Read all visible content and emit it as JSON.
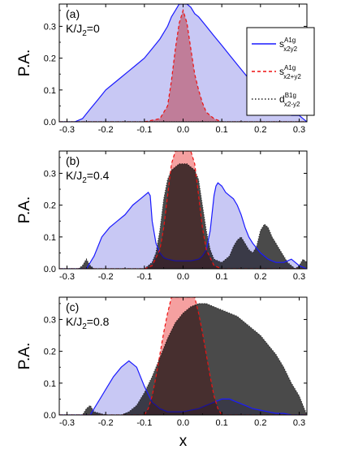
{
  "chart_data": [
    {
      "type": "area",
      "panel_label": "(a)",
      "param_label": {
        "main": "K/J",
        "sub": "2",
        "tail": "=0"
      },
      "ylabel": "P.A.",
      "xlabel": "",
      "xlim": [
        -0.32,
        0.32
      ],
      "ylim": [
        0,
        0.37
      ],
      "xticks": [
        "-0.3",
        "-0.2",
        "-0.1",
        "0.0",
        "0.1",
        "0.2",
        "0.3"
      ],
      "yticks": [
        "0.0",
        "0.1",
        "0.2",
        "0.3"
      ],
      "series": [
        {
          "key": "s_x2y2",
          "x": [
            -0.32,
            -0.28,
            -0.26,
            -0.24,
            -0.22,
            -0.2,
            -0.18,
            -0.16,
            -0.14,
            -0.12,
            -0.1,
            -0.08,
            -0.06,
            -0.04,
            -0.03,
            -0.02,
            -0.01,
            0.0,
            0.01,
            0.02,
            0.03,
            0.04,
            0.06,
            0.08,
            0.1,
            0.12,
            0.14,
            0.16,
            0.18,
            0.2,
            0.22,
            0.24,
            0.26,
            0.28,
            0.3,
            0.31,
            0.32
          ],
          "y": [
            0.0,
            0.0,
            0.01,
            0.04,
            0.07,
            0.1,
            0.12,
            0.14,
            0.16,
            0.18,
            0.2,
            0.23,
            0.26,
            0.3,
            0.33,
            0.35,
            0.37,
            0.37,
            0.37,
            0.36,
            0.34,
            0.33,
            0.3,
            0.27,
            0.24,
            0.21,
            0.18,
            0.15,
            0.12,
            0.09,
            0.06,
            0.04,
            0.03,
            0.02,
            0.02,
            0.01,
            0.0
          ]
        },
        {
          "key": "s_x2+y2",
          "x": [
            -0.32,
            -0.1,
            -0.06,
            -0.04,
            -0.03,
            -0.02,
            -0.01,
            0.0,
            0.01,
            0.02,
            0.03,
            0.04,
            0.05,
            0.06,
            0.08,
            0.1,
            0.32
          ],
          "y": [
            0.0,
            0.0,
            0.01,
            0.05,
            0.13,
            0.23,
            0.31,
            0.35,
            0.31,
            0.23,
            0.15,
            0.1,
            0.06,
            0.03,
            0.01,
            0.0,
            0.0
          ]
        },
        {
          "key": "d_x2-y2",
          "x": [
            -0.32,
            0.32
          ],
          "y": [
            0.0,
            0.0
          ]
        }
      ]
    },
    {
      "type": "area",
      "panel_label": "(b)",
      "param_label": {
        "main": "K/J",
        "sub": "2",
        "tail": "=0.4"
      },
      "ylabel": "P.A.",
      "xlabel": "",
      "xlim": [
        -0.32,
        0.32
      ],
      "ylim": [
        0,
        0.37
      ],
      "xticks": [
        "-0.3",
        "-0.2",
        "-0.1",
        "0.0",
        "0.1",
        "0.2",
        "0.3"
      ],
      "yticks": [
        "0.0",
        "0.1",
        "0.2",
        "0.3"
      ],
      "series": [
        {
          "key": "s_x2y2",
          "x": [
            -0.32,
            -0.25,
            -0.23,
            -0.21,
            -0.19,
            -0.17,
            -0.15,
            -0.13,
            -0.11,
            -0.09,
            -0.085,
            -0.08,
            -0.07,
            -0.06,
            -0.05,
            -0.04,
            -0.02,
            0.0,
            0.02,
            0.04,
            0.05,
            0.06,
            0.07,
            0.08,
            0.085,
            0.09,
            0.1,
            0.11,
            0.12,
            0.13,
            0.14,
            0.15,
            0.16,
            0.17,
            0.18,
            0.2,
            0.22,
            0.24,
            0.26,
            0.28,
            0.3,
            0.32
          ],
          "y": [
            0.0,
            0.0,
            0.04,
            0.1,
            0.13,
            0.15,
            0.17,
            0.2,
            0.22,
            0.24,
            0.23,
            0.15,
            0.08,
            0.05,
            0.035,
            0.03,
            0.025,
            0.025,
            0.025,
            0.03,
            0.04,
            0.06,
            0.12,
            0.23,
            0.26,
            0.27,
            0.26,
            0.24,
            0.23,
            0.22,
            0.2,
            0.17,
            0.13,
            0.1,
            0.08,
            0.05,
            0.03,
            0.02,
            0.02,
            0.03,
            0.01,
            0.0
          ]
        },
        {
          "key": "s_x2+y2",
          "x": [
            -0.32,
            -0.1,
            -0.08,
            -0.06,
            -0.05,
            -0.04,
            -0.03,
            -0.02,
            0.02,
            0.03,
            0.04,
            0.05,
            0.06,
            0.08,
            0.1,
            0.32
          ],
          "y": [
            0.0,
            0.0,
            0.01,
            0.06,
            0.13,
            0.23,
            0.33,
            0.37,
            0.37,
            0.33,
            0.23,
            0.13,
            0.06,
            0.01,
            0.0,
            0.0
          ]
        },
        {
          "key": "d_x2-y2",
          "x": [
            -0.32,
            -0.27,
            -0.26,
            -0.25,
            -0.24,
            -0.23,
            -0.22,
            -0.2,
            -0.18,
            -0.16,
            -0.14,
            -0.12,
            -0.1,
            -0.08,
            -0.07,
            -0.06,
            -0.05,
            -0.04,
            -0.03,
            -0.02,
            -0.01,
            0.0,
            0.01,
            0.02,
            0.03,
            0.04,
            0.05,
            0.06,
            0.07,
            0.08,
            0.1,
            0.12,
            0.13,
            0.14,
            0.15,
            0.16,
            0.17,
            0.18,
            0.19,
            0.2,
            0.21,
            0.22,
            0.23,
            0.24,
            0.25,
            0.26,
            0.27,
            0.28,
            0.29,
            0.3,
            0.31,
            0.32
          ],
          "y": [
            0.0,
            0.0,
            0.01,
            0.03,
            0.01,
            0.0,
            0.0,
            0.0,
            0.0,
            0.0,
            0.0,
            0.0,
            0.0,
            0.02,
            0.05,
            0.12,
            0.22,
            0.28,
            0.31,
            0.32,
            0.33,
            0.33,
            0.33,
            0.32,
            0.31,
            0.28,
            0.2,
            0.12,
            0.06,
            0.03,
            0.02,
            0.04,
            0.07,
            0.09,
            0.1,
            0.08,
            0.06,
            0.05,
            0.07,
            0.12,
            0.14,
            0.13,
            0.1,
            0.08,
            0.06,
            0.04,
            0.02,
            0.01,
            0.0,
            0.01,
            0.03,
            0.02
          ]
        }
      ]
    },
    {
      "type": "area",
      "panel_label": "(c)",
      "param_label": {
        "main": "K/J",
        "sub": "2",
        "tail": "=0.8"
      },
      "ylabel": "P.A.",
      "xlabel": "x",
      "xlim": [
        -0.32,
        0.32
      ],
      "ylim": [
        0,
        0.37
      ],
      "xticks": [
        "-0.3",
        "-0.2",
        "-0.1",
        "0.0",
        "0.1",
        "0.2",
        "0.3"
      ],
      "yticks": [
        "0.0",
        "0.1",
        "0.2",
        "0.3"
      ],
      "series": [
        {
          "key": "s_x2y2",
          "x": [
            -0.32,
            -0.24,
            -0.22,
            -0.2,
            -0.18,
            -0.16,
            -0.14,
            -0.12,
            -0.1,
            -0.08,
            -0.06,
            -0.04,
            -0.02,
            0.0,
            0.02,
            0.04,
            0.06,
            0.08,
            0.1,
            0.12,
            0.14,
            0.16,
            0.18,
            0.2,
            0.22,
            0.24,
            0.26,
            0.28,
            0.3,
            0.32
          ],
          "y": [
            0.0,
            0.0,
            0.04,
            0.08,
            0.12,
            0.15,
            0.17,
            0.15,
            0.09,
            0.04,
            0.02,
            0.01,
            0.01,
            0.01,
            0.015,
            0.02,
            0.03,
            0.04,
            0.05,
            0.05,
            0.04,
            0.03,
            0.02,
            0.015,
            0.01,
            0.005,
            0.005,
            0.0,
            0.0,
            0.0
          ]
        },
        {
          "key": "s_x2+y2",
          "x": [
            -0.32,
            -0.1,
            -0.09,
            -0.08,
            -0.07,
            -0.06,
            -0.05,
            -0.04,
            -0.03,
            0.03,
            0.04,
            0.05,
            0.06,
            0.07,
            0.08,
            0.09,
            0.1,
            0.32
          ],
          "y": [
            0.0,
            0.0,
            0.02,
            0.06,
            0.12,
            0.19,
            0.26,
            0.32,
            0.37,
            0.37,
            0.32,
            0.26,
            0.19,
            0.12,
            0.06,
            0.02,
            0.0,
            0.0
          ]
        },
        {
          "key": "d_x2-y2",
          "x": [
            -0.32,
            -0.26,
            -0.25,
            -0.24,
            -0.23,
            -0.2,
            -0.16,
            -0.14,
            -0.12,
            -0.1,
            -0.08,
            -0.06,
            -0.04,
            -0.02,
            0.0,
            0.02,
            0.04,
            0.06,
            0.08,
            0.1,
            0.12,
            0.14,
            0.16,
            0.18,
            0.2,
            0.22,
            0.24,
            0.26,
            0.28,
            0.3,
            0.31,
            0.32
          ],
          "y": [
            0.0,
            0.0,
            0.02,
            0.03,
            0.01,
            0.0,
            0.0,
            0.01,
            0.03,
            0.07,
            0.12,
            0.18,
            0.24,
            0.29,
            0.32,
            0.34,
            0.35,
            0.35,
            0.34,
            0.33,
            0.32,
            0.31,
            0.29,
            0.27,
            0.25,
            0.22,
            0.19,
            0.15,
            0.1,
            0.06,
            0.03,
            0.0
          ]
        }
      ]
    }
  ],
  "legend": {
    "items": [
      {
        "key": "s_x2y2",
        "main": "s",
        "sup": "A1g",
        "sub": "x2y2"
      },
      {
        "key": "s_x2+y2",
        "main": "s",
        "sup": "A1g",
        "sub": "x2+y2"
      },
      {
        "key": "d_x2-y2",
        "main": "d",
        "sup": "B1g",
        "sub": "x2-y2"
      }
    ]
  },
  "colors": {
    "s_x2y2_line": "#1a1aff",
    "s_x2y2_fill": "#c8c8f4",
    "s_x2+y2_line": "#ee1111",
    "s_x2+y2_fill": "#f5a0a0",
    "d_x2-y2_line": "#222222",
    "d_x2-y2_fill": "#4a4a4a"
  }
}
